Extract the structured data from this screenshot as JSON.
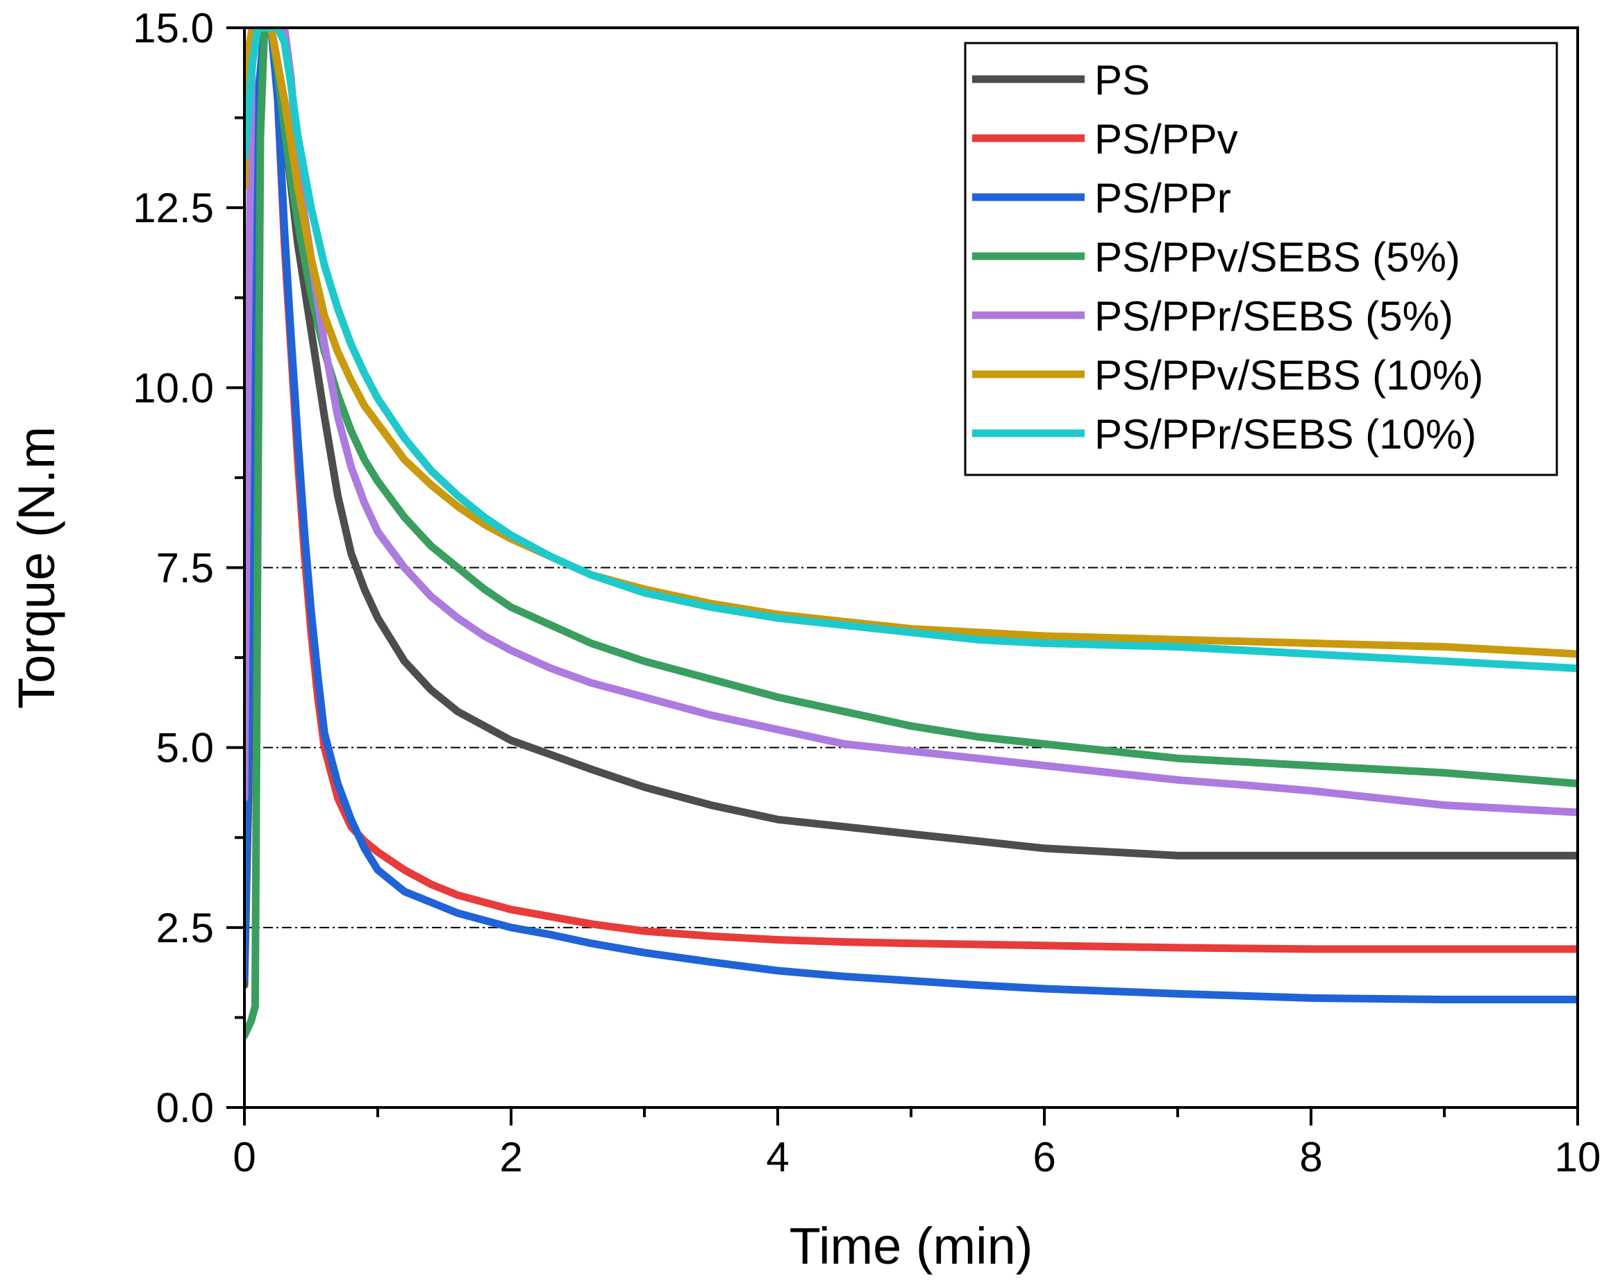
{
  "chart_data": {
    "type": "line",
    "title": "",
    "xlabel": "Time (min)",
    "ylabel": "Torque (N.m",
    "xlim": [
      0,
      10
    ],
    "ylim": [
      0,
      15
    ],
    "x_ticks": [
      0,
      2,
      4,
      6,
      8,
      10
    ],
    "x_tick_labels": [
      "0",
      "2",
      "4",
      "6",
      "8",
      "10"
    ],
    "x_minor_ticks": [
      1,
      3,
      5,
      7,
      9
    ],
    "y_ticks": [
      0,
      2.5,
      5,
      7.5,
      10,
      12.5,
      15
    ],
    "y_tick_labels": [
      "0.0",
      "2.5",
      "5.0",
      "7.5",
      "10.0",
      "12.5",
      "15.0"
    ],
    "reference_lines": [
      2.5,
      5.0,
      7.5
    ],
    "legend_position": "top-right",
    "series": [
      {
        "name": "PS",
        "color": "#4d4d4d",
        "x": [
          0,
          0.03,
          0.06,
          0.1,
          0.15,
          0.2,
          0.25,
          0.3,
          0.35,
          0.4,
          0.5,
          0.6,
          0.7,
          0.8,
          0.9,
          1.0,
          1.2,
          1.4,
          1.6,
          1.8,
          2.0,
          2.3,
          2.6,
          3.0,
          3.5,
          4.0,
          4.5,
          5.0,
          5.5,
          6.0,
          6.5,
          7.0,
          8.0,
          9.0,
          10.0
        ],
        "y": [
          1.7,
          4.3,
          9.0,
          13.5,
          15.0,
          15.0,
          14.5,
          13.6,
          12.8,
          12.0,
          10.8,
          9.6,
          8.5,
          7.7,
          7.2,
          6.8,
          6.2,
          5.8,
          5.5,
          5.3,
          5.1,
          4.9,
          4.7,
          4.45,
          4.2,
          4.0,
          3.9,
          3.8,
          3.7,
          3.6,
          3.55,
          3.5,
          3.5,
          3.5,
          3.5
        ]
      },
      {
        "name": "PS/PPv",
        "color": "#e83b3b",
        "x": [
          0,
          0.03,
          0.06,
          0.1,
          0.15,
          0.2,
          0.25,
          0.3,
          0.35,
          0.4,
          0.45,
          0.5,
          0.55,
          0.6,
          0.7,
          0.8,
          0.9,
          1.0,
          1.2,
          1.4,
          1.6,
          1.8,
          2.0,
          2.3,
          2.6,
          3.0,
          3.5,
          4.0,
          4.5,
          5.0,
          6.0,
          7.0,
          8.0,
          9.0,
          10.0
        ],
        "y": [
          1.8,
          5.0,
          10.0,
          14.0,
          15.0,
          15.0,
          14.0,
          12.0,
          10.5,
          9.0,
          7.7,
          6.6,
          5.7,
          5.0,
          4.3,
          3.9,
          3.7,
          3.55,
          3.3,
          3.1,
          2.95,
          2.85,
          2.75,
          2.65,
          2.55,
          2.45,
          2.38,
          2.33,
          2.3,
          2.28,
          2.25,
          2.22,
          2.2,
          2.2,
          2.2
        ]
      },
      {
        "name": "PS/PPr",
        "color": "#1f63d6",
        "x": [
          0,
          0.03,
          0.06,
          0.1,
          0.15,
          0.2,
          0.25,
          0.3,
          0.35,
          0.4,
          0.45,
          0.5,
          0.55,
          0.6,
          0.7,
          0.8,
          0.9,
          1.0,
          1.2,
          1.4,
          1.6,
          1.8,
          2.0,
          2.3,
          2.6,
          3.0,
          3.5,
          4.0,
          4.5,
          5.0,
          5.5,
          6.0,
          7.0,
          8.0,
          9.0,
          10.0
        ],
        "y": [
          1.8,
          5.0,
          10.0,
          14.0,
          15.0,
          15.0,
          14.0,
          12.2,
          10.7,
          9.3,
          8.0,
          6.9,
          6.0,
          5.2,
          4.5,
          4.0,
          3.6,
          3.3,
          3.0,
          2.85,
          2.7,
          2.6,
          2.5,
          2.4,
          2.28,
          2.15,
          2.02,
          1.9,
          1.82,
          1.76,
          1.7,
          1.65,
          1.58,
          1.52,
          1.5,
          1.5
        ]
      },
      {
        "name": "PS/PPv/SEBS (5%)",
        "color": "#3a9e5f",
        "x": [
          0,
          0.05,
          0.08,
          0.1,
          0.12,
          0.15,
          0.2,
          0.25,
          0.3,
          0.35,
          0.4,
          0.5,
          0.6,
          0.7,
          0.8,
          0.9,
          1.0,
          1.2,
          1.4,
          1.6,
          1.8,
          2.0,
          2.3,
          2.6,
          3.0,
          3.5,
          4.0,
          4.5,
          5.0,
          5.5,
          6.0,
          6.5,
          7.0,
          8.0,
          9.0,
          10.0
        ],
        "y": [
          1.0,
          1.2,
          1.4,
          8.0,
          13.5,
          15.0,
          15.0,
          14.4,
          13.6,
          12.9,
          12.3,
          11.3,
          10.5,
          9.9,
          9.4,
          9.0,
          8.7,
          8.2,
          7.8,
          7.5,
          7.2,
          6.95,
          6.7,
          6.45,
          6.2,
          5.95,
          5.7,
          5.5,
          5.3,
          5.15,
          5.05,
          4.95,
          4.85,
          4.75,
          4.65,
          4.5
        ]
      },
      {
        "name": "PS/PPr/SEBS (5%)",
        "color": "#ad7adf",
        "x": [
          0,
          0.03,
          0.06,
          0.1,
          0.15,
          0.2,
          0.25,
          0.3,
          0.35,
          0.4,
          0.5,
          0.6,
          0.7,
          0.8,
          0.9,
          1.0,
          1.2,
          1.4,
          1.6,
          1.8,
          2.0,
          2.3,
          2.6,
          3.0,
          3.5,
          4.0,
          4.5,
          5.0,
          5.5,
          6.0,
          6.5,
          7.0,
          7.5,
          8.0,
          9.0,
          10.0
        ],
        "y": [
          4.3,
          11.0,
          15.0,
          15.0,
          15.0,
          15.0,
          15.0,
          15.0,
          14.3,
          13.0,
          11.8,
          10.6,
          9.6,
          8.9,
          8.4,
          8.0,
          7.5,
          7.1,
          6.8,
          6.55,
          6.35,
          6.1,
          5.9,
          5.7,
          5.45,
          5.25,
          5.05,
          4.95,
          4.85,
          4.75,
          4.65,
          4.55,
          4.48,
          4.4,
          4.2,
          4.1
        ]
      },
      {
        "name": "PS/PPv/SEBS (10%)",
        "color": "#c99a0e",
        "x": [
          0,
          0.03,
          0.06,
          0.1,
          0.15,
          0.2,
          0.25,
          0.3,
          0.35,
          0.4,
          0.5,
          0.6,
          0.7,
          0.8,
          0.9,
          1.0,
          1.2,
          1.4,
          1.6,
          1.8,
          2.0,
          2.3,
          2.6,
          3.0,
          3.5,
          4.0,
          4.5,
          5.0,
          5.5,
          6.0,
          7.0,
          8.0,
          9.0,
          10.0
        ],
        "y": [
          12.8,
          14.7,
          15.0,
          15.0,
          15.0,
          15.0,
          14.5,
          14.0,
          13.4,
          12.8,
          11.8,
          11.0,
          10.5,
          10.1,
          9.75,
          9.5,
          9.0,
          8.65,
          8.35,
          8.1,
          7.9,
          7.65,
          7.4,
          7.2,
          7.0,
          6.85,
          6.75,
          6.65,
          6.6,
          6.55,
          6.5,
          6.45,
          6.4,
          6.3
        ]
      },
      {
        "name": "PS/PPr/SEBS (10%)",
        "color": "#1ec9cc",
        "x": [
          0,
          0.03,
          0.06,
          0.1,
          0.15,
          0.2,
          0.25,
          0.3,
          0.35,
          0.4,
          0.5,
          0.6,
          0.7,
          0.8,
          0.9,
          1.0,
          1.2,
          1.4,
          1.6,
          1.8,
          2.0,
          2.3,
          2.6,
          3.0,
          3.5,
          4.0,
          4.5,
          5.0,
          5.5,
          6.0,
          7.0,
          8.0,
          9.0,
          10.0
        ],
        "y": [
          13.2,
          13.8,
          14.5,
          15.0,
          15.0,
          15.0,
          15.0,
          14.8,
          14.2,
          13.5,
          12.5,
          11.7,
          11.1,
          10.6,
          10.2,
          9.85,
          9.3,
          8.85,
          8.5,
          8.2,
          7.95,
          7.65,
          7.4,
          7.15,
          6.95,
          6.8,
          6.7,
          6.6,
          6.5,
          6.45,
          6.4,
          6.3,
          6.2,
          6.1
        ]
      }
    ]
  }
}
